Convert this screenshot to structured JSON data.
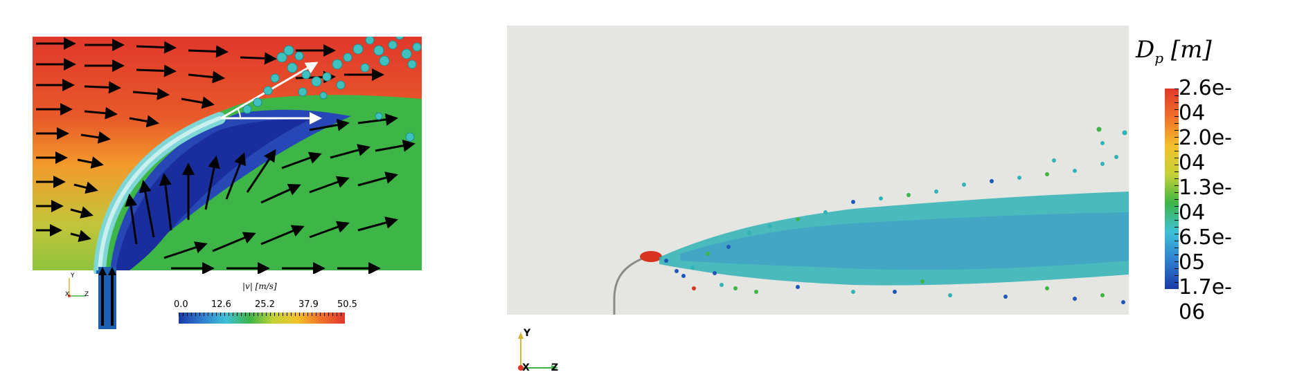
{
  "left_panel": {
    "colorbar": {
      "label": "|v| [m/s]",
      "ticks": [
        "0.0",
        "12.6",
        "25.2",
        "37.9",
        "50.5"
      ]
    },
    "axes_triad": {
      "y": "Y",
      "x": "X",
      "z": "Z"
    },
    "colors": {
      "red": "#e0382b",
      "orange": "#f39a2b",
      "green": "#3db547",
      "blue": "#1a3aa8",
      "particle": "#3fc1c0"
    }
  },
  "right_panel": {
    "colorbar": {
      "title_main": "D",
      "title_sub": "p",
      "title_unit": "[m]",
      "ticks": [
        "2.6e-04",
        "2.0e-04",
        "1.3e-04",
        "6.5e-05",
        "1.7e-06"
      ]
    },
    "axes_triad": {
      "y": "Y",
      "x": "X",
      "z": "Z"
    },
    "colors": {
      "background": "#e5e5e2",
      "teal": "#2fb3b5",
      "red": "#d8331f"
    }
  }
}
